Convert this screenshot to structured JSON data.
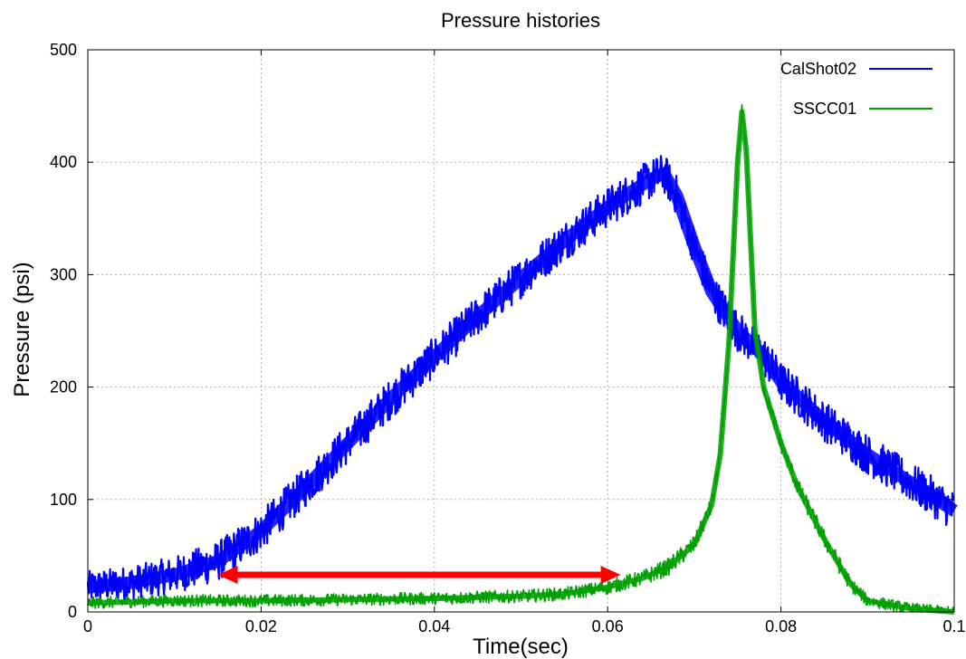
{
  "chart_data": {
    "type": "line",
    "title": "Pressure histories",
    "xlabel": "Time(sec)",
    "ylabel": "Pressure (psi)",
    "xlim": [
      0,
      0.1
    ],
    "ylim": [
      0,
      500
    ],
    "x_ticks": [
      "0",
      "0.02",
      "0.04",
      "0.06",
      "0.08",
      "0.1"
    ],
    "y_ticks": [
      "0",
      "100",
      "200",
      "300",
      "400",
      "500"
    ],
    "grid": true,
    "legend_position": "top-right",
    "series": [
      {
        "name": "CalShot02",
        "color": "#0000ff",
        "noise_band_psi": 18,
        "x": [
          0,
          0.005,
          0.01,
          0.015,
          0.02,
          0.025,
          0.03,
          0.035,
          0.04,
          0.045,
          0.05,
          0.055,
          0.06,
          0.065,
          0.0665,
          0.068,
          0.07,
          0.072,
          0.075,
          0.078,
          0.08,
          0.085,
          0.09,
          0.095,
          0.1
        ],
        "y": [
          22,
          26,
          33,
          45,
          72,
          110,
          150,
          190,
          227,
          263,
          297,
          330,
          360,
          385,
          390,
          370,
          325,
          285,
          250,
          228,
          205,
          170,
          140,
          115,
          90
        ]
      },
      {
        "name": "SSCC01",
        "color": "#00a000",
        "noise_band_psi": 8,
        "x": [
          0,
          0.01,
          0.02,
          0.03,
          0.04,
          0.05,
          0.055,
          0.06,
          0.064,
          0.067,
          0.07,
          0.072,
          0.073,
          0.074,
          0.075,
          0.0755,
          0.076,
          0.0765,
          0.077,
          0.078,
          0.08,
          0.082,
          0.085,
          0.088,
          0.09,
          0.095,
          0.1
        ],
        "y": [
          8,
          10,
          10,
          11,
          12,
          14,
          16,
          22,
          30,
          40,
          60,
          95,
          140,
          240,
          400,
          445,
          410,
          330,
          250,
          200,
          150,
          110,
          65,
          25,
          10,
          3,
          0
        ]
      }
    ],
    "annotation": {
      "type": "double-arrow",
      "color": "#ff0000",
      "x_start": 0.015,
      "x_end": 0.0615,
      "y": 33
    }
  }
}
